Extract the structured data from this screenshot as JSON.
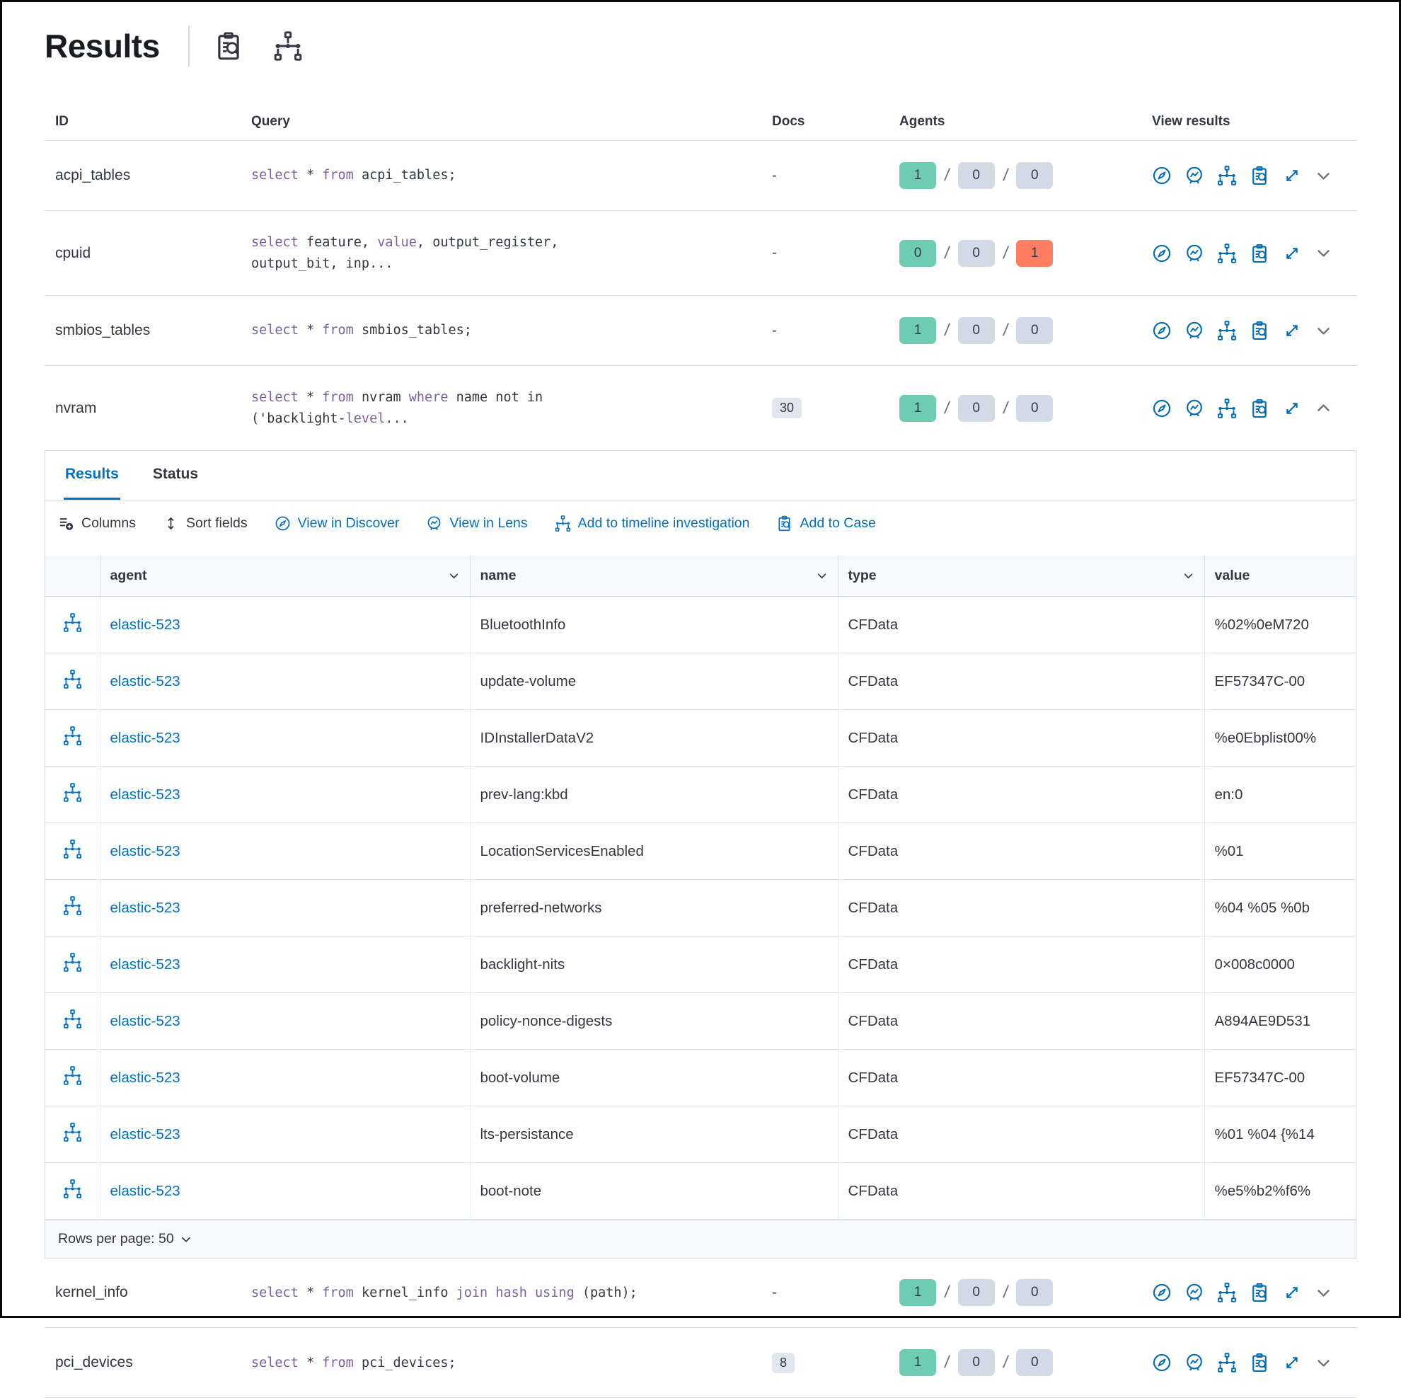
{
  "header": {
    "title": "Results",
    "icons": [
      "inspect-clipboard-search-icon",
      "topology-icon"
    ]
  },
  "colors": {
    "accent_blue": "#0071c2",
    "icon_blue": "#006bb4",
    "keyword_purple": "#7c5fa0",
    "success_green": "#6dccb1",
    "error_red": "#ff7e62",
    "neutral_badge_gray": "#d3dae6",
    "docs_badge_gray": "#e0e5ee",
    "border_gray": "#d3dae6",
    "text_dark": "#343741"
  },
  "results_table": {
    "columns": [
      "ID",
      "Query",
      "Docs",
      "Agents",
      "View results"
    ],
    "rows": [
      {
        "id": "acpi_tables",
        "query": [
          {
            "t": "select",
            "c": "kw"
          },
          {
            "t": " * ",
            "c": "t"
          },
          {
            "t": "from",
            "c": "kw"
          },
          {
            "t": " acpi_tables;",
            "c": "t"
          }
        ],
        "docs": {
          "value": "-",
          "badge": false
        },
        "agents": [
          {
            "value": "1",
            "style": "green"
          },
          {
            "value": "0",
            "style": "gray"
          },
          {
            "value": "0",
            "style": "gray"
          }
        ],
        "expanded": false
      },
      {
        "id": "cpuid",
        "query": [
          {
            "t": "select",
            "c": "kw"
          },
          {
            "t": " feature, ",
            "c": "t"
          },
          {
            "t": "value",
            "c": "kw"
          },
          {
            "t": ", output_register,",
            "c": "t"
          },
          {
            "br": true
          },
          {
            "t": "output_bit, inp...",
            "c": "t"
          }
        ],
        "docs": {
          "value": "-",
          "badge": false
        },
        "agents": [
          {
            "value": "0",
            "style": "green"
          },
          {
            "value": "0",
            "style": "gray"
          },
          {
            "value": "1",
            "style": "red"
          }
        ],
        "expanded": false
      },
      {
        "id": "smbios_tables",
        "query": [
          {
            "t": "select",
            "c": "kw"
          },
          {
            "t": " * ",
            "c": "t"
          },
          {
            "t": "from",
            "c": "kw"
          },
          {
            "t": " smbios_tables;",
            "c": "t"
          }
        ],
        "docs": {
          "value": "-",
          "badge": false
        },
        "agents": [
          {
            "value": "1",
            "style": "green"
          },
          {
            "value": "0",
            "style": "gray"
          },
          {
            "value": "0",
            "style": "gray"
          }
        ],
        "expanded": false
      },
      {
        "id": "nvram",
        "query": [
          {
            "t": "select",
            "c": "kw"
          },
          {
            "t": " * ",
            "c": "t"
          },
          {
            "t": "from",
            "c": "kw"
          },
          {
            "t": " nvram ",
            "c": "t"
          },
          {
            "t": "where",
            "c": "kw"
          },
          {
            "t": " name not in",
            "c": "t"
          },
          {
            "br": true
          },
          {
            "t": "('backlight-",
            "c": "t"
          },
          {
            "t": "level",
            "c": "kw"
          },
          {
            "t": "...",
            "c": "t"
          }
        ],
        "docs": {
          "value": "30",
          "badge": true
        },
        "agents": [
          {
            "value": "1",
            "style": "green"
          },
          {
            "value": "0",
            "style": "gray"
          },
          {
            "value": "0",
            "style": "gray"
          }
        ],
        "expanded": true
      },
      {
        "id": "kernel_info",
        "query": [
          {
            "t": "select",
            "c": "kw"
          },
          {
            "t": " * ",
            "c": "t"
          },
          {
            "t": "from",
            "c": "kw"
          },
          {
            "t": " kernel_info ",
            "c": "t"
          },
          {
            "t": "join",
            "c": "kw"
          },
          {
            "t": " ",
            "c": "t"
          },
          {
            "t": "hash",
            "c": "kw"
          },
          {
            "t": " ",
            "c": "t"
          },
          {
            "t": "using",
            "c": "kw"
          },
          {
            "t": " (path);",
            "c": "t"
          }
        ],
        "docs": {
          "value": "-",
          "badge": false
        },
        "agents": [
          {
            "value": "1",
            "style": "green"
          },
          {
            "value": "0",
            "style": "gray"
          },
          {
            "value": "0",
            "style": "gray"
          }
        ],
        "expanded": false
      },
      {
        "id": "pci_devices",
        "query": [
          {
            "t": "select",
            "c": "kw"
          },
          {
            "t": " * ",
            "c": "t"
          },
          {
            "t": "from",
            "c": "kw"
          },
          {
            "t": " pci_devices;",
            "c": "t"
          }
        ],
        "docs": {
          "value": "8",
          "badge": true
        },
        "agents": [
          {
            "value": "1",
            "style": "green"
          },
          {
            "value": "0",
            "style": "gray"
          },
          {
            "value": "0",
            "style": "gray"
          }
        ],
        "expanded": false
      }
    ]
  },
  "expanded_panel": {
    "tabs": [
      {
        "label": "Results",
        "active": true
      },
      {
        "label": "Status",
        "active": false
      }
    ],
    "toolbar": {
      "columns_label": "Columns",
      "sort_fields_label": "Sort fields",
      "view_in_discover_label": "View in Discover",
      "view_in_lens_label": "View in Lens",
      "add_to_timeline_label": "Add to timeline investigation",
      "add_to_case_label": "Add to Case"
    },
    "grid": {
      "columns": [
        "agent",
        "name",
        "type",
        "value"
      ],
      "rows": [
        {
          "agent": "elastic-523",
          "name": "BluetoothInfo",
          "type": "CFData",
          "value": "%02%0eM720"
        },
        {
          "agent": "elastic-523",
          "name": "update-volume",
          "type": "CFData",
          "value": "EF57347C-00"
        },
        {
          "agent": "elastic-523",
          "name": "IDInstallerDataV2",
          "type": "CFData",
          "value": "%e0Ebplist00%"
        },
        {
          "agent": "elastic-523",
          "name": "prev-lang:kbd",
          "type": "CFData",
          "value": "en:0"
        },
        {
          "agent": "elastic-523",
          "name": "LocationServicesEnabled",
          "type": "CFData",
          "value": "%01"
        },
        {
          "agent": "elastic-523",
          "name": "preferred-networks",
          "type": "CFData",
          "value": "%04 %05 %0b"
        },
        {
          "agent": "elastic-523",
          "name": "backlight-nits",
          "type": "CFData",
          "value": "0×008c0000"
        },
        {
          "agent": "elastic-523",
          "name": "policy-nonce-digests",
          "type": "CFData",
          "value": "A894AE9D531"
        },
        {
          "agent": "elastic-523",
          "name": "boot-volume",
          "type": "CFData",
          "value": "EF57347C-00"
        },
        {
          "agent": "elastic-523",
          "name": "lts-persistance",
          "type": "CFData",
          "value": "%01 %04 {%14"
        },
        {
          "agent": "elastic-523",
          "name": "boot-note",
          "type": "CFData",
          "value": "%e5%b2%f6%"
        }
      ]
    },
    "footer": {
      "rows_per_page_label": "Rows per page: 50"
    }
  }
}
